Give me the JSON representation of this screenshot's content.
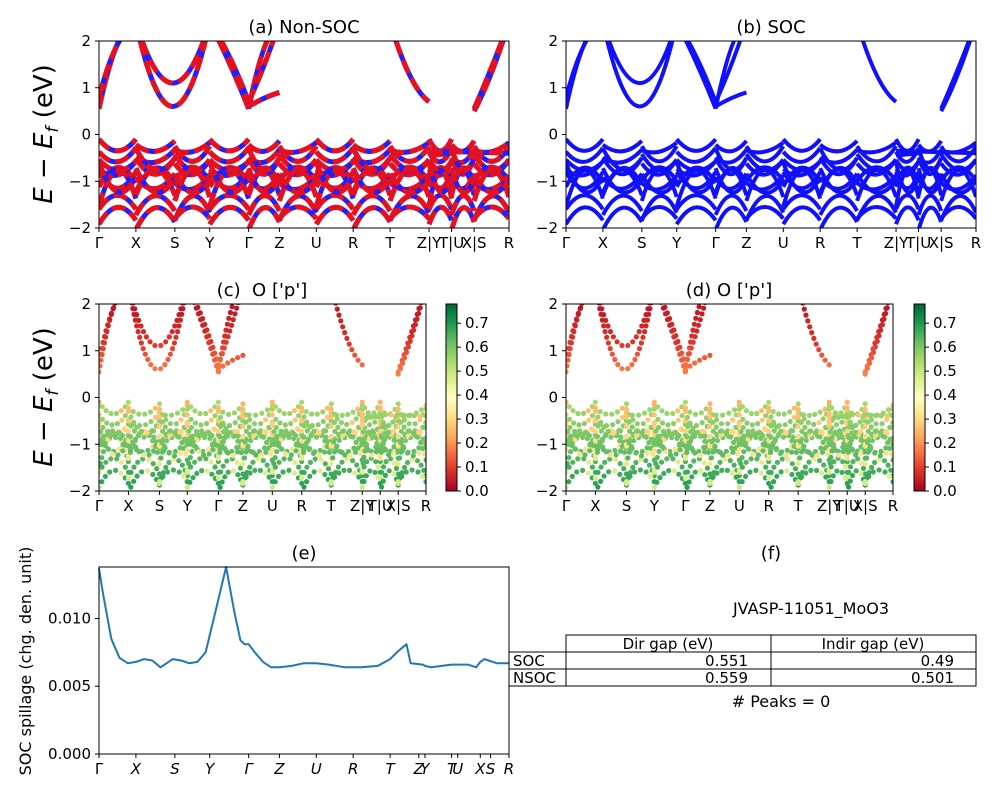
{
  "chart_data": [
    {
      "panel": "a",
      "type": "line",
      "title": "(a) Non-SOC",
      "ylabel": "E − E_f (eV)",
      "ylim": [
        -2,
        2
      ],
      "yticks": [
        "2",
        "1",
        "0",
        "−1",
        "−2"
      ],
      "xticks": [
        "Γ",
        "X",
        "S",
        "Y",
        "Γ",
        "Z",
        "U",
        "R",
        "T",
        "Z|Y",
        "T|U",
        "X|S",
        "R"
      ],
      "series": [
        {
          "color": "#e8101c",
          "values_valence_top": [
            -0.1,
            -0.45,
            -0.6,
            -0.45,
            -0.1,
            -0.25,
            -0.3,
            -0.35,
            -0.3,
            -0.4,
            -0.35,
            -0.4,
            -0.35
          ]
        },
        {
          "color": "#1f1fff",
          "values_conduction_bottom": [
            0.55,
            1.8,
            0.5,
            1.8,
            0.55,
            1.9,
            2.0,
            2.0,
            2.0,
            0.7,
            2.0,
            2.0,
            0.5
          ]
        }
      ]
    },
    {
      "panel": "b",
      "type": "line",
      "title": "(b) SOC",
      "ylim": [
        -2,
        2
      ],
      "yticks": [
        "2",
        "1",
        "0",
        "−1",
        "−2"
      ],
      "xticks": [
        "Γ",
        "X",
        "S",
        "Y",
        "Γ",
        "Z",
        "U",
        "R",
        "T",
        "Z|Y",
        "T|U",
        "X|S",
        "R"
      ],
      "series": [
        {
          "color": "#1010ff",
          "values_valence_top": [
            -0.1,
            -0.45,
            -0.6,
            -0.45,
            -0.1,
            -0.25,
            -0.3,
            -0.35,
            -0.3,
            -0.4,
            -0.35,
            -0.4,
            -0.35
          ]
        },
        {
          "color": "#1010ff",
          "values_conduction_bottom": [
            0.55,
            1.8,
            0.5,
            1.8,
            0.55,
            1.9,
            2.0,
            2.0,
            2.0,
            0.7,
            2.0,
            2.0,
            0.5
          ]
        }
      ]
    },
    {
      "panel": "c",
      "type": "scatter",
      "title": "(c)  O ['p']",
      "ylabel": "E − E_f (eV)",
      "ylim": [
        -2,
        2
      ],
      "yticks": [
        "2",
        "1",
        "0",
        "−1",
        "−2"
      ],
      "xticks": [
        "Γ",
        "X",
        "S",
        "Y",
        "Γ",
        "Z",
        "U",
        "R",
        "T",
        "Z|Y",
        "T|U",
        "X|S",
        "R"
      ],
      "colorbar": {
        "ticks": [
          "0.7",
          "0.6",
          "0.5",
          "0.4",
          "0.3",
          "0.2",
          "0.1",
          "0.0"
        ],
        "range": [
          0,
          0.78
        ],
        "colormap": "RdYlGn"
      }
    },
    {
      "panel": "d",
      "type": "scatter",
      "title": "(d) O ['p']",
      "ylim": [
        -2,
        2
      ],
      "yticks": [
        "2",
        "1",
        "0",
        "−1",
        "−2"
      ],
      "xticks": [
        "Γ",
        "X",
        "S",
        "Y",
        "Γ",
        "Z",
        "U",
        "R",
        "T",
        "Z|Y",
        "T|U",
        "X|S",
        "R"
      ],
      "colorbar": {
        "ticks": [
          "0.7",
          "0.6",
          "0.5",
          "0.4",
          "0.3",
          "0.2",
          "0.1",
          "0.0"
        ],
        "range": [
          0,
          0.78
        ],
        "colormap": "RdYlGn"
      }
    },
    {
      "panel": "e",
      "type": "line",
      "title": "(e)",
      "ylabel": "SOC spillage (chg. den. unit)",
      "ylim": [
        0,
        0.0138
      ],
      "yticks": [
        "0.010",
        "0.005",
        "0.000"
      ],
      "xticks": [
        "Γ",
        "X",
        "S",
        "Y",
        "Γ",
        "Z",
        "U",
        "R",
        "T",
        "Z",
        "Y",
        "T",
        "U",
        "X",
        "S",
        "R"
      ],
      "line_color": "#1f77b4",
      "x": [
        0,
        0.01,
        0.03,
        0.05,
        0.07,
        0.09,
        0.11,
        0.13,
        0.15,
        0.16,
        0.18,
        0.2,
        0.22,
        0.24,
        0.26,
        0.28,
        0.31,
        0.33,
        0.345,
        0.355,
        0.365,
        0.38,
        0.4,
        0.42,
        0.44,
        0.47,
        0.5,
        0.53,
        0.56,
        0.6,
        0.64,
        0.68,
        0.71,
        0.73,
        0.75,
        0.76,
        0.79,
        0.795,
        0.81,
        0.86,
        0.88,
        0.9,
        0.92,
        0.93,
        0.94,
        0.95,
        0.97,
        1.0
      ],
      "values": [
        0.0137,
        0.0118,
        0.0085,
        0.0071,
        0.0067,
        0.0068,
        0.007,
        0.0069,
        0.0064,
        0.0066,
        0.007,
        0.0069,
        0.0067,
        0.0068,
        0.0075,
        0.01,
        0.0138,
        0.0105,
        0.0084,
        0.0081,
        0.0081,
        0.0075,
        0.0068,
        0.0064,
        0.0064,
        0.0065,
        0.0067,
        0.0067,
        0.0066,
        0.0064,
        0.0064,
        0.0065,
        0.007,
        0.0076,
        0.0081,
        0.0067,
        0.0066,
        0.0065,
        0.0064,
        0.0066,
        0.0066,
        0.0066,
        0.0064,
        0.0068,
        0.007,
        0.0069,
        0.0067,
        0.0067
      ]
    },
    {
      "panel": "f",
      "type": "table",
      "title": "(f)",
      "material": "JVASP-11051_MoO3",
      "columns": [
        "Dir gap (eV)",
        "Indir gap (eV)"
      ],
      "rows": [
        {
          "label": "SOC",
          "values": [
            "0.551",
            "0.49"
          ]
        },
        {
          "label": "NSOC",
          "values": [
            "0.559",
            "0.501"
          ]
        }
      ],
      "footnote": "# Peaks = 0"
    }
  ]
}
